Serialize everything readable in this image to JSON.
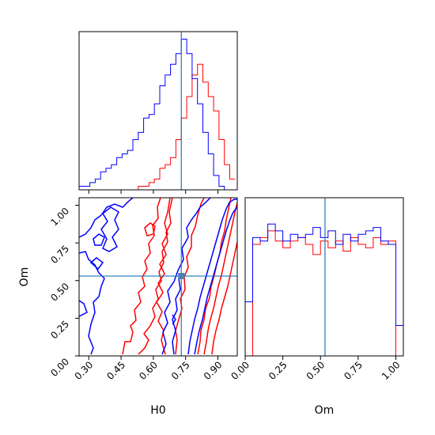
{
  "chart_data": {
    "type": "corner",
    "colors": {
      "series_a": "#ff0000",
      "series_b": "#0000ff",
      "truth": "#1f77b4"
    },
    "axes": {
      "H0": {
        "label": "H0",
        "range": [
          0.255,
          0.99
        ],
        "ticks": [
          "0.30",
          "0.45",
          "0.60",
          "0.75",
          "0.90"
        ],
        "tick_values": [
          0.3,
          0.45,
          0.6,
          0.75,
          0.9
        ]
      },
      "Om": {
        "label": "Om",
        "range": [
          0.0,
          1.05
        ],
        "ticks": [
          "0.00",
          "0.25",
          "0.50",
          "0.75",
          "1.00"
        ],
        "tick_values": [
          0.0,
          0.25,
          0.5,
          0.75,
          1.0
        ]
      }
    },
    "truth": {
      "H0": 0.73,
      "Om": 0.53
    },
    "histograms": {
      "H0": {
        "bin_edges": [
          0.255,
          0.28,
          0.305,
          0.33,
          0.355,
          0.38,
          0.405,
          0.43,
          0.455,
          0.48,
          0.505,
          0.53,
          0.555,
          0.58,
          0.605,
          0.63,
          0.655,
          0.68,
          0.705,
          0.73,
          0.755,
          0.78,
          0.805,
          0.83,
          0.855,
          0.88,
          0.905,
          0.93,
          0.955,
          0.98
        ],
        "series_a": [
          0,
          0,
          0,
          0,
          0,
          0,
          0,
          0,
          0,
          0,
          0,
          1,
          1,
          2,
          3,
          6,
          7,
          9,
          14,
          20,
          26,
          32,
          35,
          30,
          26,
          22,
          14,
          7,
          3
        ],
        "series_b": [
          1,
          1,
          2,
          3,
          5,
          6,
          7,
          9,
          10,
          11,
          14,
          16,
          20,
          21,
          24,
          29,
          32,
          35,
          38,
          42,
          38,
          31,
          24,
          16,
          10,
          4,
          1,
          0,
          0
        ]
      },
      "Om": {
        "bin_edges": [
          0.0,
          0.05,
          0.1,
          0.15,
          0.2,
          0.25,
          0.3,
          0.35,
          0.4,
          0.45,
          0.5,
          0.55,
          0.6,
          0.65,
          0.7,
          0.75,
          0.8,
          0.85,
          0.9,
          0.95,
          1.0,
          1.05
        ],
        "series_a": [
          0,
          33,
          35,
          37,
          34,
          32,
          34,
          35,
          33,
          30,
          34,
          32,
          34,
          31,
          35,
          33,
          32,
          35,
          33,
          34,
          0
        ],
        "series_b": [
          16,
          35,
          34,
          39,
          37,
          34,
          36,
          35,
          36,
          38,
          35,
          37,
          33,
          36,
          34,
          36,
          37,
          38,
          34,
          33,
          9
        ]
      }
    }
  }
}
